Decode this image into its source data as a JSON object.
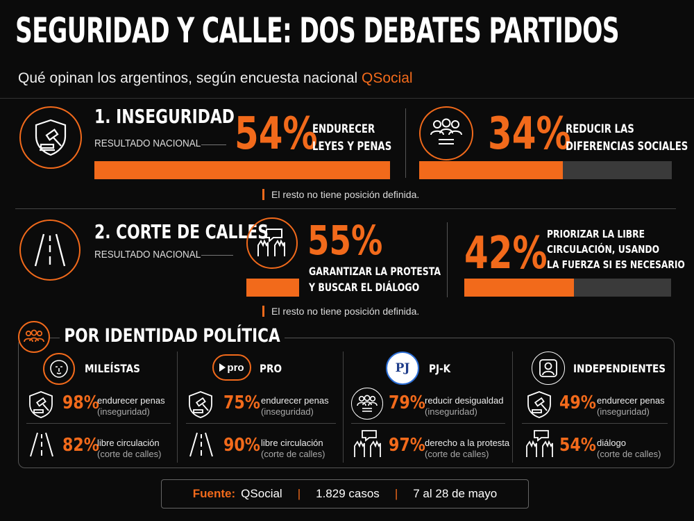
{
  "title": "SEGURIDAD Y CALLE: DOS DEBATES PARTIDOS",
  "subtitle_prefix": "Qué opinan los argentinos, según encuesta nacional ",
  "subtitle_brand": "QSocial",
  "colors": {
    "accent": "#f26a1b",
    "track": "#3a3a3a",
    "bg": "#0b0b0b"
  },
  "sec1": {
    "title": "1. INSEGURIDAD",
    "result_label": "RESULTADO NACIONAL",
    "a_pct": "54%",
    "a_value": 0.54,
    "a_text1": "ENDURECER",
    "a_text2": "LEYES Y PENAS",
    "b_pct": "34%",
    "b_value": 0.34,
    "b_text1": "REDUCIR LAS",
    "b_text2": "DIFERENCIAS SOCIALES",
    "note": "El resto no tiene posición definida."
  },
  "sec2": {
    "title": "2. CORTE DE CALLES",
    "result_label": "RESULTADO NACIONAL",
    "a_pct": "55%",
    "a_value": 0.55,
    "a_text1": "GARANTIZAR LA PROTESTA",
    "a_text2": "Y BUSCAR EL DIÁLOGO",
    "b_pct": "42%",
    "b_value": 0.42,
    "b_text1": "PRIORIZAR LA LIBRE",
    "b_text2": "CIRCULACIÓN, USANDO",
    "b_text3": "LA FUERZA SI ES NECESARIO",
    "note": "El resto no tiene posición definida."
  },
  "identity": {
    "title": "POR IDENTIDAD POLÍTICA",
    "groups": [
      {
        "name": "MILEÍSTAS",
        "logo": "lion-icon",
        "r1_pct": "98%",
        "r1_text": "endurecer penas",
        "r1_sub": "(inseguridad)",
        "r1_icon": "gavel-shield-icon",
        "r2_pct": "82%",
        "r2_text": "libre circulación",
        "r2_sub": "(corte de calles)",
        "r2_icon": "road-icon"
      },
      {
        "name": "PRO",
        "logo": "pro-logo",
        "logo_text": "pro",
        "r1_pct": "75%",
        "r1_text": "endurecer penas",
        "r1_sub": "(inseguridad)",
        "r1_icon": "gavel-shield-icon",
        "r2_pct": "90%",
        "r2_text": "libre circulación",
        "r2_sub": "(corte de calles)",
        "r2_icon": "road-icon"
      },
      {
        "name": "PJ-K",
        "logo": "pj-logo",
        "logo_text": "PJ",
        "r1_pct": "79%",
        "r1_text": "reducir desigualdad",
        "r1_sub": "(inseguridad)",
        "r1_icon": "people-icon",
        "r2_pct": "97%",
        "r2_text": "derecho a la protesta",
        "r2_sub": "(corte de calles)",
        "r2_icon": "protest-icon"
      },
      {
        "name": "INDEPENDIENTES",
        "logo": "person-icon",
        "r1_pct": "49%",
        "r1_text": "endurecer penas",
        "r1_sub": "(inseguridad)",
        "r1_icon": "gavel-shield-icon",
        "r2_pct": "54%",
        "r2_text": "diálogo",
        "r2_sub": "(corte de calles)",
        "r2_icon": "protest-icon"
      }
    ]
  },
  "footer": {
    "label": "Fuente:",
    "source": "QSocial",
    "sep": "|",
    "cases": "1.829 casos",
    "dates": "7 al 28 de mayo"
  }
}
